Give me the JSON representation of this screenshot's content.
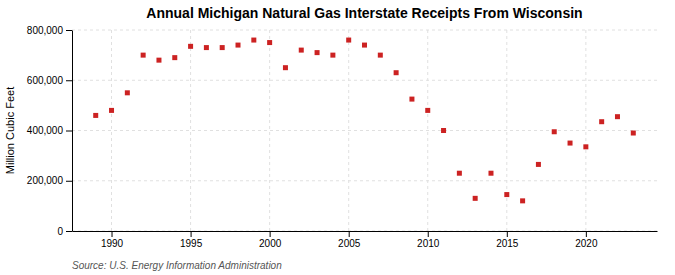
{
  "chart_data": {
    "type": "scatter",
    "title": "Annual Michigan Natural Gas Interstate Receipts From Wisconsin",
    "ylabel": "Million Cubic Feet",
    "source": "Source: U.S. Energy Information Administration",
    "x": [
      1989,
      1990,
      1991,
      1992,
      1993,
      1994,
      1995,
      1996,
      1997,
      1998,
      1999,
      2000,
      2001,
      2002,
      2003,
      2004,
      2005,
      2006,
      2007,
      2008,
      2009,
      2010,
      2011,
      2012,
      2013,
      2014,
      2015,
      2016,
      2017,
      2018,
      2019,
      2020,
      2021,
      2022,
      2023
    ],
    "values": [
      460000,
      480000,
      550000,
      700000,
      680000,
      690000,
      735000,
      730000,
      730000,
      740000,
      760000,
      750000,
      650000,
      720000,
      710000,
      700000,
      760000,
      740000,
      700000,
      630000,
      525000,
      480000,
      400000,
      230000,
      130000,
      230000,
      145000,
      120000,
      265000,
      395000,
      350000,
      335000,
      435000,
      455000,
      390000
    ],
    "color": "#cc2222",
    "marker": "square",
    "xlim": [
      1987.5,
      2024.5
    ],
    "xticks": [
      1990,
      1995,
      2000,
      2005,
      2010,
      2015,
      2020
    ],
    "ylim": [
      0,
      800000
    ],
    "yticks": [
      0,
      {
        "value": 200000,
        "label": "200,000"
      },
      {
        "value": 400000,
        "label": "400,000"
      },
      {
        "value": 600000,
        "label": "600,000"
      },
      {
        "value": 800000,
        "label": "800,000"
      }
    ],
    "grid": true
  }
}
